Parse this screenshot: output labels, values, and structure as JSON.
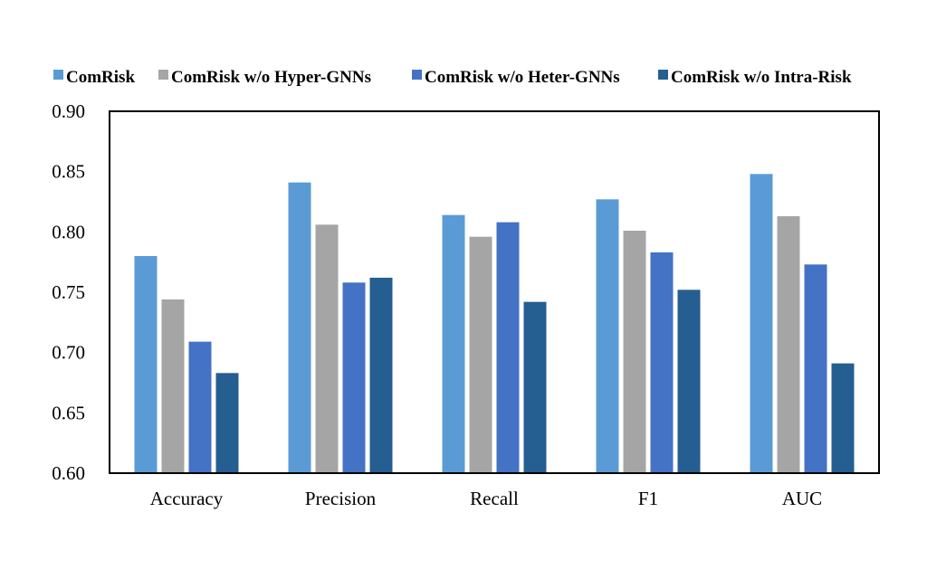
{
  "chart_data": {
    "type": "bar",
    "categories": [
      "Accuracy",
      "Precision",
      "Recall",
      "F1",
      "AUC"
    ],
    "series": [
      {
        "name": "ComRisk",
        "color": "#5b9bd5",
        "values": [
          0.78,
          0.841,
          0.814,
          0.827,
          0.848
        ]
      },
      {
        "name": "ComRisk w/o Hyper-GNNs",
        "color": "#a5a5a5",
        "values": [
          0.744,
          0.806,
          0.796,
          0.801,
          0.813
        ]
      },
      {
        "name": "ComRisk w/o Heter-GNNs",
        "color": "#4472c4",
        "values": [
          0.709,
          0.758,
          0.808,
          0.783,
          0.773
        ]
      },
      {
        "name": "ComRisk w/o Intra-Risk",
        "color": "#255e91",
        "values": [
          0.683,
          0.762,
          0.742,
          0.752,
          0.691
        ]
      }
    ],
    "ylim": [
      0.6,
      0.9
    ],
    "yticks": [
      "0.60",
      "0.65",
      "0.70",
      "0.75",
      "0.80",
      "0.85",
      "0.90"
    ],
    "title": "",
    "xlabel": "",
    "ylabel": "",
    "legend_position": "top",
    "grid": false
  }
}
